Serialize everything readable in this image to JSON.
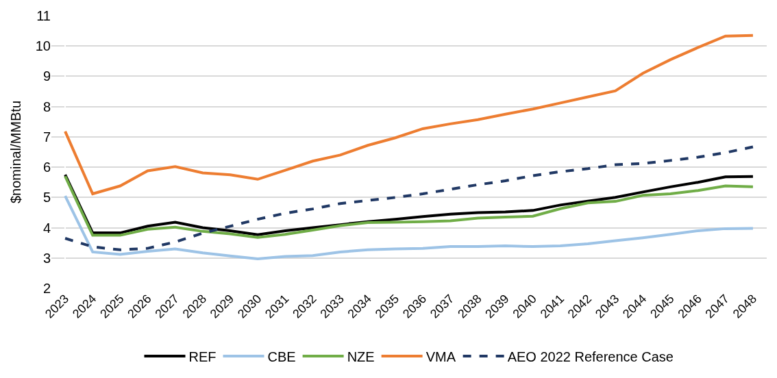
{
  "chart_data": {
    "type": "line",
    "ylabel": "$nominal/MMBtu",
    "categories": [
      "2023",
      "2024",
      "2025",
      "2026",
      "2027",
      "2028",
      "2029",
      "2030",
      "2031",
      "2032",
      "2033",
      "2034",
      "2035",
      "2036",
      "2037",
      "2038",
      "2039",
      "2040",
      "2041",
      "2042",
      "2043",
      "2044",
      "2045",
      "2046",
      "2047",
      "2048"
    ],
    "ylim": [
      2,
      11
    ],
    "yticks": [
      2,
      3,
      4,
      5,
      6,
      7,
      8,
      9,
      10,
      11
    ],
    "grid": "y",
    "legend": "bottom",
    "marker": "none",
    "series": [
      {
        "name": "REF",
        "color": "#000000",
        "line_style": "solid",
        "values": [
          5.75,
          3.83,
          3.83,
          4.05,
          4.18,
          4.0,
          3.9,
          3.77,
          3.9,
          4.0,
          4.1,
          4.2,
          4.28,
          4.37,
          4.45,
          4.5,
          4.52,
          4.57,
          4.75,
          4.88,
          5.0,
          5.18,
          5.35,
          5.5,
          5.68,
          5.69
        ]
      },
      {
        "name": "CBE",
        "color": "#9dc3e6",
        "line_style": "solid",
        "values": [
          5.05,
          3.2,
          3.12,
          3.22,
          3.3,
          3.17,
          3.07,
          2.97,
          3.05,
          3.08,
          3.2,
          3.27,
          3.3,
          3.32,
          3.38,
          3.38,
          3.4,
          3.38,
          3.4,
          3.47,
          3.57,
          3.67,
          3.78,
          3.9,
          3.97,
          3.98
        ]
      },
      {
        "name": "NZE",
        "color": "#70ad47",
        "line_style": "solid",
        "values": [
          5.7,
          3.75,
          3.75,
          3.95,
          4.02,
          3.88,
          3.8,
          3.68,
          3.78,
          3.92,
          4.07,
          4.17,
          4.18,
          4.2,
          4.23,
          4.32,
          4.35,
          4.38,
          4.63,
          4.82,
          4.87,
          5.07,
          5.12,
          5.23,
          5.38,
          5.35
        ]
      },
      {
        "name": "VMA",
        "color": "#ed7d31",
        "line_style": "solid",
        "values": [
          7.18,
          5.12,
          5.38,
          5.88,
          6.02,
          5.81,
          5.75,
          5.6,
          5.9,
          6.2,
          6.4,
          6.72,
          6.97,
          7.27,
          7.43,
          7.57,
          7.75,
          7.92,
          8.12,
          8.32,
          8.52,
          9.1,
          9.55,
          9.95,
          10.33,
          10.35
        ]
      },
      {
        "name": "AEO 2022 Reference Case",
        "color": "#203864",
        "line_style": "dashed",
        "values": [
          3.65,
          3.37,
          3.27,
          3.32,
          3.53,
          3.82,
          4.05,
          4.28,
          4.48,
          4.62,
          4.8,
          4.9,
          5.0,
          5.12,
          5.27,
          5.42,
          5.55,
          5.72,
          5.85,
          5.95,
          6.08,
          6.12,
          6.22,
          6.33,
          6.48,
          6.67
        ]
      }
    ]
  }
}
